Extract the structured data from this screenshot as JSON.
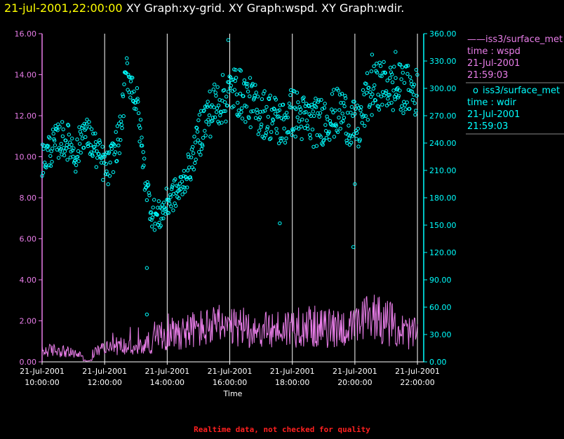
{
  "header": {
    "datetime": "21-jul-2001,22:00:00",
    "graphs": "XY Graph:xy-grid.  XY Graph:wspd.  XY Graph:wdir."
  },
  "legend": {
    "wspd": {
      "source": "iss3/surface_met",
      "field": "time : wspd",
      "date": "21-Jul-2001",
      "time": "21:59:03"
    },
    "wdir": {
      "source": "iss3/surface_met",
      "field": "time : wdir",
      "date": "21-Jul-2001",
      "time": "21:59:03"
    }
  },
  "footer": "Realtime data, not checked for quality",
  "colors": {
    "wspd": "#e87de8",
    "wdir": "#00ffff",
    "header_date": "#ffff00",
    "grid": "#ffffff",
    "footer": "#ff2020"
  },
  "chart_data": {
    "type": "scatter",
    "xlabel": "Time",
    "xlim": [
      10.0,
      22.2
    ],
    "x_ticks": [
      {
        "date": "21-Jul-2001",
        "time": "10:00:00"
      },
      {
        "date": "21-Jul-2001",
        "time": "12:00:00"
      },
      {
        "date": "21-Jul-2001",
        "time": "14:00:00"
      },
      {
        "date": "21-Jul-2001",
        "time": "16:00:00"
      },
      {
        "date": "21-Jul-2001",
        "time": "18:00:00"
      },
      {
        "date": "21-Jul-2001",
        "time": "20:00:00"
      },
      {
        "date": "21-Jul-2001",
        "time": "22:00:00"
      }
    ],
    "x_tick_hours": [
      10,
      12,
      14,
      16,
      18,
      20,
      22
    ],
    "y_left": {
      "lim": [
        0,
        16
      ],
      "ticks": [
        "0.00",
        "2.00",
        "4.00",
        "6.00",
        "8.00",
        "10.00",
        "12.00",
        "14.00",
        "16.00"
      ]
    },
    "y_right": {
      "lim": [
        0,
        360
      ],
      "ticks": [
        "0.00",
        "30.00",
        "60.00",
        "90.00",
        "120.00",
        "150.00",
        "180.00",
        "210.00",
        "240.00",
        "270.00",
        "300.00",
        "330.00",
        "360.00"
      ]
    },
    "grid": "vertical",
    "series": [
      {
        "name": "time : wspd",
        "axis": "left",
        "style": "line",
        "anchors": [
          [
            10.0,
            0.5
          ],
          [
            10.5,
            0.6
          ],
          [
            11.0,
            0.4
          ],
          [
            11.5,
            0.3
          ],
          [
            12.0,
            0.7
          ],
          [
            12.5,
            0.8
          ],
          [
            13.0,
            0.6
          ],
          [
            13.5,
            1.0
          ],
          [
            14.0,
            1.4
          ],
          [
            14.5,
            1.5
          ],
          [
            15.0,
            1.6
          ],
          [
            15.5,
            1.7
          ],
          [
            16.0,
            1.6
          ],
          [
            16.5,
            1.7
          ],
          [
            17.0,
            1.5
          ],
          [
            17.5,
            1.6
          ],
          [
            18.0,
            1.7
          ],
          [
            18.5,
            1.8
          ],
          [
            19.0,
            1.6
          ],
          [
            19.5,
            1.7
          ],
          [
            20.0,
            1.6
          ],
          [
            20.5,
            2.3
          ],
          [
            21.0,
            2.0
          ],
          [
            21.5,
            1.5
          ],
          [
            22.0,
            1.3
          ]
        ]
      },
      {
        "name": "time : wdir",
        "axis": "right",
        "style": "markers",
        "anchors": [
          [
            10.0,
            220
          ],
          [
            10.3,
            235
          ],
          [
            10.6,
            245
          ],
          [
            10.9,
            240
          ],
          [
            11.1,
            225
          ],
          [
            11.3,
            255
          ],
          [
            11.6,
            240
          ],
          [
            11.9,
            220
          ],
          [
            12.1,
            210
          ],
          [
            12.3,
            230
          ],
          [
            12.5,
            250
          ],
          [
            12.7,
            320
          ],
          [
            12.9,
            300
          ],
          [
            13.05,
            280
          ],
          [
            13.3,
            200
          ],
          [
            13.5,
            165
          ],
          [
            13.7,
            158
          ],
          [
            13.9,
            168
          ],
          [
            14.1,
            180
          ],
          [
            14.4,
            188
          ],
          [
            14.6,
            205
          ],
          [
            14.8,
            220
          ],
          [
            15.0,
            250
          ],
          [
            15.3,
            270
          ],
          [
            15.6,
            285
          ],
          [
            15.9,
            290
          ],
          [
            16.1,
            300
          ],
          [
            16.5,
            290
          ],
          [
            16.9,
            275
          ],
          [
            17.3,
            270
          ],
          [
            17.7,
            260
          ],
          [
            18.0,
            275
          ],
          [
            18.4,
            265
          ],
          [
            18.8,
            262
          ],
          [
            19.2,
            270
          ],
          [
            19.6,
            275
          ],
          [
            19.9,
            260
          ],
          [
            20.1,
            255
          ],
          [
            20.4,
            290
          ],
          [
            20.8,
            305
          ],
          [
            21.2,
            300
          ],
          [
            21.6,
            300
          ],
          [
            22.0,
            295
          ]
        ],
        "outliers": [
          [
            13.35,
            103
          ],
          [
            13.35,
            52
          ],
          [
            15.95,
            353
          ],
          [
            17.6,
            152
          ],
          [
            19.95,
            126
          ],
          [
            20.0,
            195
          ],
          [
            20.55,
            337
          ],
          [
            21.3,
            340
          ]
        ]
      }
    ]
  }
}
